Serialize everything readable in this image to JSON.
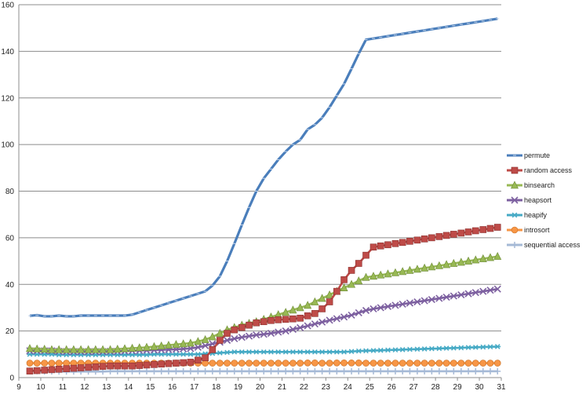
{
  "chart_data": {
    "type": "line",
    "title": "",
    "xlabel": "",
    "ylabel": "",
    "xlim": [
      9,
      31
    ],
    "ylim": [
      0,
      160
    ],
    "xticks": [
      "9",
      "10",
      "11",
      "12",
      "13",
      "14",
      "15",
      "16",
      "17",
      "18",
      "19",
      "20",
      "21",
      "22",
      "23",
      "24",
      "25",
      "26",
      "27",
      "28",
      "29",
      "30",
      "31"
    ],
    "yticks": [
      "0",
      "20",
      "40",
      "60",
      "80",
      "100",
      "120",
      "140",
      "160"
    ],
    "grid": "horizontal",
    "legend": "right",
    "x": [
      9.5,
      9.83,
      10.17,
      10.5,
      10.83,
      11.17,
      11.5,
      11.83,
      12.17,
      12.5,
      12.83,
      13.17,
      13.5,
      13.83,
      14.17,
      14.5,
      14.83,
      15.17,
      15.5,
      15.83,
      16.17,
      16.5,
      16.83,
      17.17,
      17.5,
      17.83,
      18.17,
      18.5,
      18.83,
      19.17,
      19.5,
      19.83,
      20.17,
      20.5,
      20.83,
      21.17,
      21.5,
      21.83,
      22.17,
      22.5,
      22.83,
      23.17,
      23.5,
      23.83,
      24.17,
      24.5,
      24.83,
      25.17,
      25.5,
      25.83,
      26.17,
      26.5,
      26.83,
      27.17,
      27.5,
      27.83,
      28.17,
      28.5,
      28.83,
      29.17,
      29.5,
      29.83,
      30.17,
      30.5,
      30.83
    ],
    "series": [
      {
        "name": "permute",
        "color": "#4a7ebb",
        "marker": "tick",
        "values": [
          26.5,
          26.8,
          26.3,
          26.3,
          26.6,
          26.3,
          26.3,
          26.6,
          26.6,
          26.6,
          26.6,
          26.6,
          26.6,
          26.6,
          27,
          28,
          29,
          30,
          31,
          32,
          33,
          34,
          35,
          36,
          37,
          39.5,
          43.5,
          50,
          57.5,
          65.5,
          73,
          80,
          85.5,
          89.5,
          93.5,
          97,
          100,
          102,
          106.5,
          108.5,
          111.5,
          116,
          121,
          126,
          132.5,
          139,
          145,
          145.5,
          146,
          146.5,
          147,
          147.5,
          148,
          148.5,
          149,
          149.5,
          150,
          150.5,
          151,
          151.5,
          152,
          152.5,
          153,
          153.5,
          154
        ]
      },
      {
        "name": "random access",
        "color": "#be4b48",
        "marker": "square",
        "values": [
          2.8,
          3,
          3.2,
          3.4,
          3.6,
          3.8,
          4,
          4.2,
          4.4,
          4.6,
          4.8,
          5,
          5,
          5,
          5,
          5.2,
          5.4,
          5.6,
          5.8,
          6,
          6.2,
          6.4,
          6.6,
          7.5,
          8.5,
          12,
          16,
          19,
          20.5,
          21.5,
          22.5,
          23.5,
          24,
          24.5,
          24.8,
          25,
          25.2,
          25.5,
          26.5,
          27.5,
          29.5,
          32.5,
          37,
          42,
          46,
          49,
          52.5,
          56,
          56.5,
          57,
          57.5,
          58,
          58.5,
          59,
          59.5,
          60,
          60.5,
          61,
          61.5,
          62,
          62.5,
          63,
          63.5,
          64,
          64.5
        ]
      },
      {
        "name": "binsearch",
        "color": "#98b954",
        "marker": "triangle",
        "values": [
          12.5,
          12.3,
          12.2,
          12,
          12,
          12,
          12,
          12,
          12,
          12,
          12,
          12,
          12.2,
          12.4,
          12.6,
          12.8,
          13,
          13.3,
          13.6,
          13.9,
          14.2,
          14.5,
          14.8,
          15.5,
          16.3,
          17.5,
          19,
          20.5,
          21.5,
          22.5,
          23.3,
          24,
          25,
          26,
          27,
          28,
          29,
          30,
          31,
          32.5,
          34,
          35.5,
          37,
          38.5,
          40,
          41.5,
          43,
          43.5,
          44,
          44.5,
          45,
          45.5,
          46,
          46.5,
          47,
          47.5,
          48,
          48.5,
          49,
          49.5,
          50,
          50.5,
          51,
          51.5,
          52
        ]
      },
      {
        "name": "heapsort",
        "color": "#7d60a0",
        "marker": "x",
        "values": [
          11.5,
          11.5,
          11.5,
          11.5,
          11.3,
          11.2,
          11.2,
          11.2,
          11.2,
          11.2,
          11.2,
          11.3,
          11.3,
          11.4,
          11.5,
          11.6,
          11.7,
          11.8,
          11.9,
          12,
          12.1,
          12.3,
          12.5,
          13,
          13.7,
          14.5,
          15.2,
          16,
          16.7,
          17.3,
          17.8,
          18.3,
          18.6,
          19,
          19.5,
          20,
          20.7,
          21.4,
          22.2,
          23,
          23.8,
          24.6,
          25.3,
          26,
          26.8,
          27.8,
          28.8,
          29.5,
          30,
          30.5,
          31,
          31.5,
          32,
          32.5,
          33,
          33.5,
          34,
          34.5,
          35,
          35.5,
          36,
          36.5,
          37,
          37.5,
          38
        ]
      },
      {
        "name": "heapify",
        "color": "#46aac5",
        "marker": "star",
        "values": [
          10,
          10,
          10,
          10,
          9.8,
          9.8,
          9.8,
          9.8,
          9.8,
          9.8,
          9.8,
          9.8,
          9.8,
          9.8,
          9.8,
          9.8,
          9.8,
          10,
          10,
          10,
          10,
          10,
          10,
          10,
          10.2,
          10.4,
          10.6,
          10.8,
          11,
          11,
          11,
          11,
          11,
          11,
          11,
          11,
          11,
          11,
          11,
          11,
          11,
          11,
          11,
          11,
          11.2,
          11.4,
          11.5,
          11.6,
          11.7,
          11.8,
          11.9,
          12,
          12.1,
          12.2,
          12.3,
          12.4,
          12.5,
          12.6,
          12.7,
          12.8,
          12.9,
          13,
          13.1,
          13.2,
          13.3
        ]
      },
      {
        "name": "introsort",
        "color": "#f79646",
        "marker": "circle",
        "values": [
          6.2,
          6.2,
          6.2,
          6.2,
          6.2,
          6.2,
          6.2,
          6.2,
          6.2,
          6.2,
          6.2,
          6.2,
          6.2,
          6.2,
          6.2,
          6.2,
          6.2,
          6.2,
          6.2,
          6.2,
          6.2,
          6.2,
          6.2,
          6.2,
          6.2,
          6.2,
          6.2,
          6.2,
          6.2,
          6.2,
          6.2,
          6.2,
          6.2,
          6.2,
          6.2,
          6.2,
          6.2,
          6.2,
          6.3,
          6.3,
          6.2,
          6.2,
          6.3,
          6.3,
          6.3,
          6.3,
          6.2,
          6.2,
          6.2,
          6.2,
          6.2,
          6.2,
          6.2,
          6.2,
          6.2,
          6.2,
          6.2,
          6.2,
          6.2,
          6.2,
          6.2,
          6.2,
          6.2,
          6.2,
          6.2
        ]
      },
      {
        "name": "sequential access",
        "color": "#a5b9d6",
        "marker": "plus",
        "values": [
          3,
          2.8,
          2.6,
          2.6,
          2.6,
          2.6,
          2.6,
          2.6,
          2.6,
          2.6,
          2.6,
          2.7,
          2.7,
          2.7,
          2.7,
          2.7,
          2.7,
          2.7,
          2.7,
          2.7,
          2.7,
          2.7,
          2.7,
          2.7,
          2.7,
          2.7,
          2.7,
          2.7,
          2.7,
          2.7,
          2.7,
          2.7,
          2.7,
          2.7,
          2.7,
          2.7,
          2.7,
          2.7,
          2.7,
          2.7,
          2.7,
          2.7,
          2.7,
          2.7,
          2.7,
          2.7,
          2.7,
          2.7,
          2.7,
          2.7,
          2.7,
          2.7,
          2.7,
          2.7,
          2.7,
          2.7,
          2.7,
          2.7,
          2.7,
          2.7,
          2.7,
          2.7,
          2.7,
          2.7,
          2.7
        ]
      }
    ]
  }
}
